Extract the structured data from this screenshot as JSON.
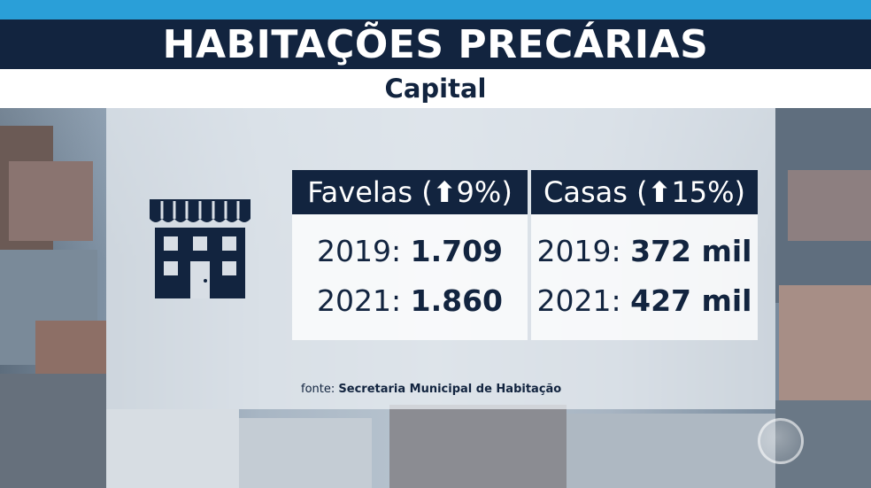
{
  "header": {
    "title": "HABITAÇÕES PRECÁRIAS",
    "subtitle": "Capital"
  },
  "icon": "building-icon",
  "columns": [
    {
      "label": "Favelas (",
      "arrow": "⬆",
      "change": "9%)",
      "rows": [
        {
          "year": "2019:",
          "value": "1.709"
        },
        {
          "year": "2021:",
          "value": "1.860"
        }
      ]
    },
    {
      "label": "Casas (",
      "arrow": "⬆",
      "change": "15%)",
      "rows": [
        {
          "year": "2019:",
          "value": "372 mil"
        },
        {
          "year": "2021:",
          "value": "427 mil"
        }
      ]
    }
  ],
  "source": {
    "label": "fonte:",
    "text": "Secretaria Municipal de Habitação"
  },
  "colors": {
    "navy": "#12243f",
    "accent_blue": "#2a9fd8",
    "white": "#ffffff"
  }
}
